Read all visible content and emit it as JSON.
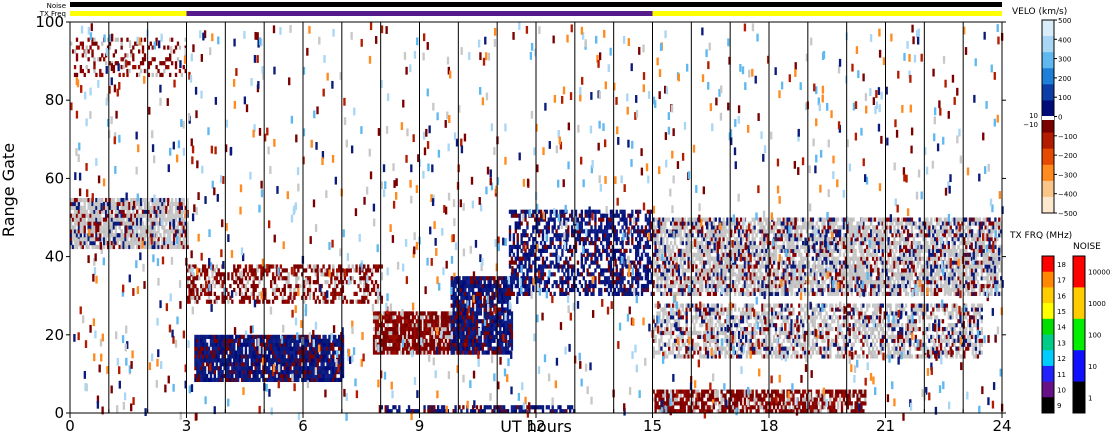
{
  "chart_data": {
    "type": "heatmap",
    "xlabel": "UT hours",
    "ylabel": "Range Gate",
    "xlim": [
      0,
      24
    ],
    "ylim": [
      0,
      100
    ],
    "xticks": [
      "0",
      "3",
      "6",
      "9",
      "12",
      "15",
      "18",
      "21",
      "24"
    ],
    "yticks": [
      "0",
      "20",
      "40",
      "60",
      "80",
      "100"
    ],
    "top_bars": {
      "noise_label": "Noise",
      "txfreq_label": "TX Freq",
      "txfreq_segments": [
        {
          "start": 0,
          "end": 3,
          "color": "#ffff00"
        },
        {
          "start": 3,
          "end": 15,
          "color": "#551a8b"
        },
        {
          "start": 15,
          "end": 24,
          "color": "#ffff00"
        }
      ]
    },
    "velocity_scale": {
      "title": "VELO (km/s)",
      "ticks": [
        "500",
        "400",
        "300",
        "200",
        "100",
        "0",
        "−100",
        "−200",
        "−300",
        "−400",
        "−500"
      ],
      "extra_labels": [
        "10",
        "−10"
      ],
      "colors": [
        "#d8ecfa",
        "#a9d6f5",
        "#5fb8ef",
        "#1e7fd8",
        "#0d3ea8",
        "#000b7a",
        "#7a0000",
        "#b31c00",
        "#e64a00",
        "#ff8a1e",
        "#fbc58a",
        "#fde7cf"
      ]
    },
    "txfreq_scale": {
      "title": "TX FRQ (MHz)",
      "ticks": [
        "18",
        "17",
        "16",
        "15",
        "14",
        "13",
        "12",
        "11",
        "10",
        "9"
      ],
      "colors": [
        "#ff0000",
        "#ff8800",
        "#ffcc00",
        "#ffff00",
        "#00dd00",
        "#00cc88",
        "#00ccff",
        "#2222ff",
        "#661188",
        "#000000"
      ]
    },
    "noise_scale": {
      "title": "NOISE",
      "ticks": [
        "10000",
        "1000",
        "100",
        "10",
        "1"
      ],
      "colors": [
        "#ff0000",
        "#ffcc00",
        "#00ee00",
        "#1010ff",
        "#000000"
      ]
    },
    "scan_lines_ut": [
      1,
      2,
      3,
      4,
      5,
      6,
      7,
      8,
      9,
      10,
      11,
      12,
      13,
      14,
      15,
      16,
      17,
      18,
      19,
      20,
      21,
      22,
      23
    ],
    "features": [
      {
        "name": "ground scatter band A",
        "t0": 0,
        "t1": 3,
        "g0": 42,
        "g1": 55,
        "kind": "gray",
        "density": 0.85
      },
      {
        "name": "ground scatter band B",
        "t0": 3,
        "t1": 8,
        "g0": 28,
        "g1": 38,
        "kind": "red",
        "density": 0.5
      },
      {
        "name": "ground scatter band C",
        "t0": 15,
        "t1": 24,
        "g0": 30,
        "g1": 50,
        "kind": "gray",
        "density": 0.75
      },
      {
        "name": "ground scatter band D",
        "t0": 15,
        "t1": 23.5,
        "g0": 14,
        "g1": 28,
        "kind": "gray",
        "density": 0.6
      },
      {
        "name": "ionospheric patch A",
        "t0": 3.2,
        "t1": 7,
        "g0": 8,
        "g1": 20,
        "kind": "blue",
        "density": 0.9
      },
      {
        "name": "ionospheric patch B",
        "t0": 7.8,
        "t1": 10.5,
        "g0": 15,
        "g1": 26,
        "kind": "red",
        "density": 0.9
      },
      {
        "name": "ionospheric patch C",
        "t0": 9.8,
        "t1": 11.4,
        "g0": 15,
        "g1": 35,
        "kind": "blue",
        "density": 0.8
      },
      {
        "name": "near range echoes",
        "t0": 15,
        "t1": 20.5,
        "g0": 0,
        "g1": 6,
        "kind": "red",
        "density": 0.75
      },
      {
        "name": "near range echoes blue",
        "t0": 8,
        "t1": 13,
        "g0": 0,
        "g1": 2,
        "kind": "blue",
        "density": 0.6
      },
      {
        "name": "sloped band",
        "t0": 11.3,
        "t1": 15,
        "g0": 30,
        "g1": 52,
        "kind": "blue",
        "density": 0.55
      },
      {
        "name": "upper echoes",
        "t0": 0,
        "t1": 3,
        "g0": 86,
        "g1": 96,
        "kind": "red",
        "density": 0.25
      }
    ]
  }
}
